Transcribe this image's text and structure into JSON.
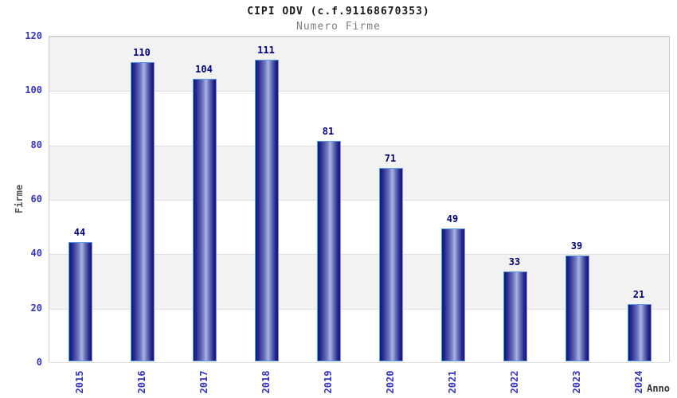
{
  "chart_data": {
    "type": "bar",
    "title": "CIPI ODV (c.f.91168670353)",
    "subtitle": "Numero Firme",
    "ylabel": "Firme",
    "xlabel": "Anno",
    "categories": [
      "2015",
      "2016",
      "2017",
      "2018",
      "2019",
      "2020",
      "2021",
      "2022",
      "2023",
      "2024"
    ],
    "values": [
      44,
      110,
      104,
      111,
      81,
      71,
      49,
      33,
      39,
      21
    ],
    "ylim": [
      0,
      120
    ],
    "ytick_step": 20,
    "yticks": [
      0,
      20,
      40,
      60,
      80,
      100,
      120
    ],
    "legend": "none",
    "grid": "horizontal-bands-alternating",
    "colors": {
      "bar_edge": "#5b9ee8",
      "bar_dark": "#191975",
      "bar_deep": "#23238c",
      "bar_mid": "#6a74bb",
      "bar_light": "#aab4e4",
      "tick_label": "#3333cc",
      "value_label": "#000080",
      "band_shade": "#f2f2f2",
      "gridline": "#e0e0e0",
      "plot_border": "#cccccc",
      "title_color": "#1a1a1a",
      "subtitle_color": "#808080",
      "y_axis_title_color": "#555555",
      "x_axis_title_color": "#333333"
    }
  }
}
